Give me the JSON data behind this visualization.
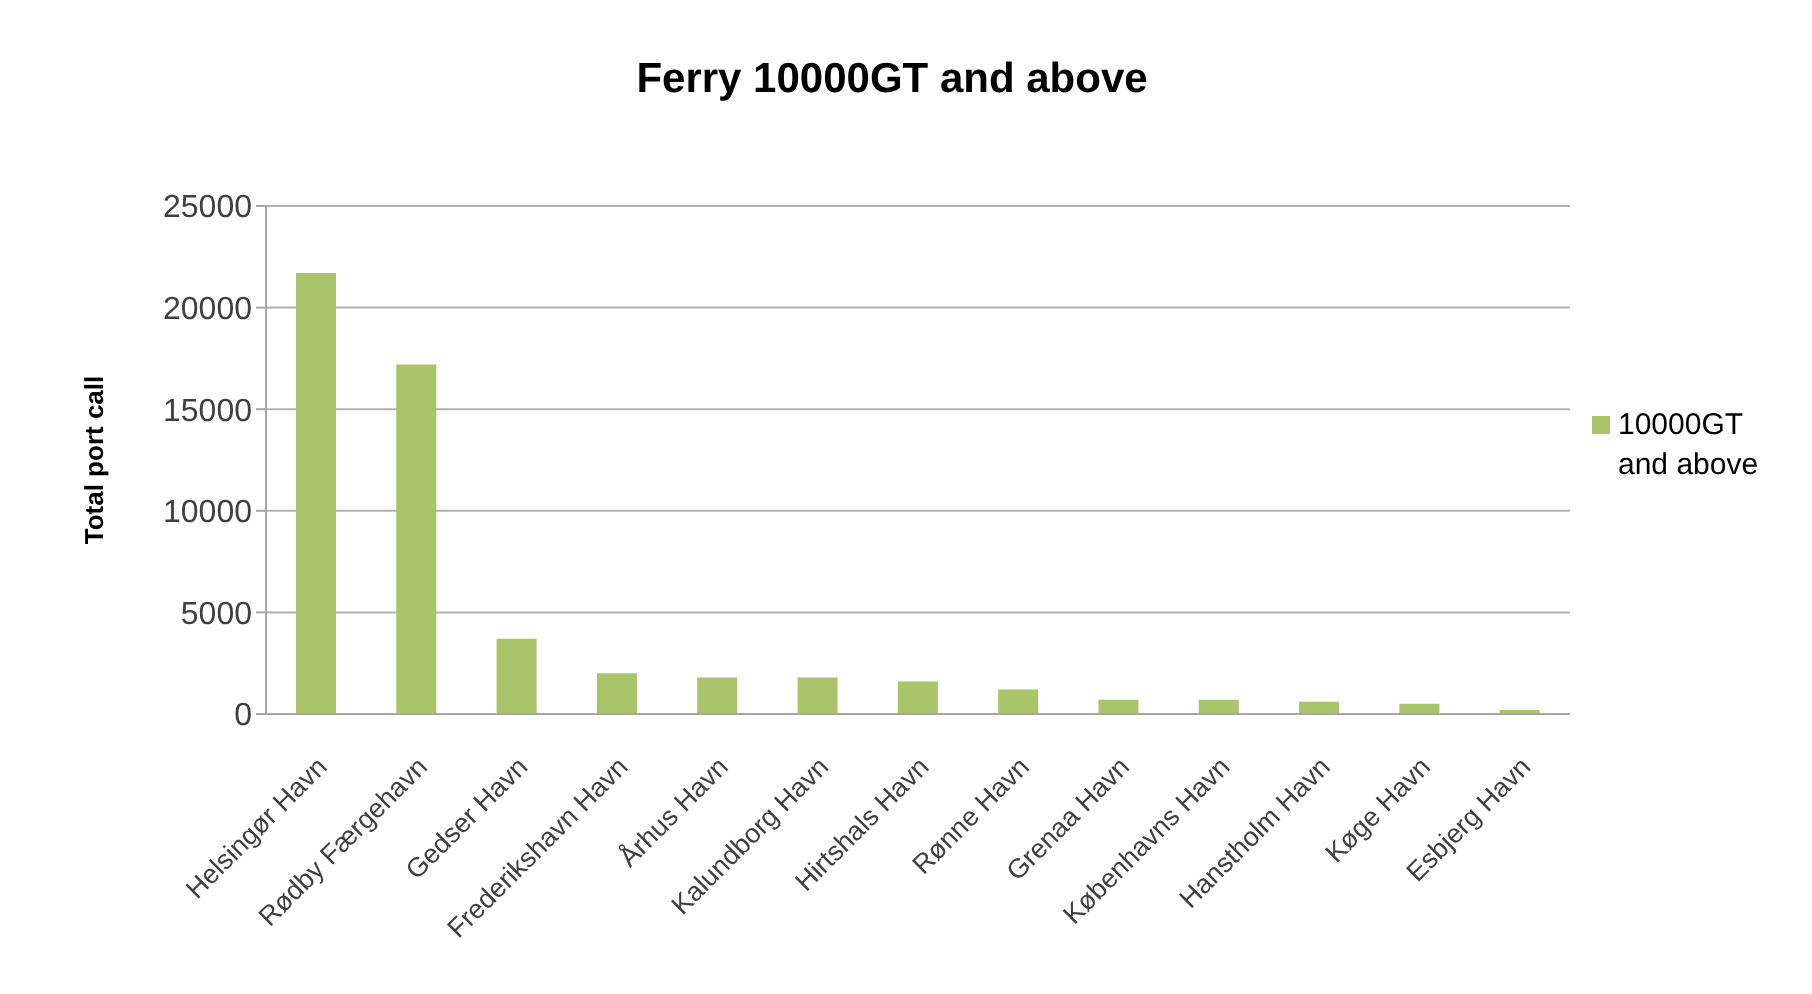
{
  "chart_data": {
    "type": "bar",
    "title": "Ferry 10000GT and above",
    "ylabel": "Total port call",
    "categories": [
      "Helsingør Havn",
      "Rødby Færgehavn",
      "Gedser Havn",
      "Frederikshavn Havn",
      "Århus Havn",
      "Kalundborg Havn",
      "Hirtshals Havn",
      "Rønne Havn",
      "Grenaa Havn",
      "Københavns Havn",
      "Hanstholm Havn",
      "Køge Havn",
      "Esbjerg Havn"
    ],
    "series": [
      {
        "name": "10000GT and above",
        "color": "#a9c46a",
        "values": [
          21700,
          17200,
          3700,
          2000,
          1800,
          1800,
          1600,
          1200,
          700,
          700,
          600,
          500,
          200
        ]
      }
    ],
    "ylim": [
      0,
      25000
    ],
    "yticks": [
      0,
      5000,
      10000,
      15000,
      20000,
      25000
    ],
    "grid": "y",
    "legend": "right"
  }
}
